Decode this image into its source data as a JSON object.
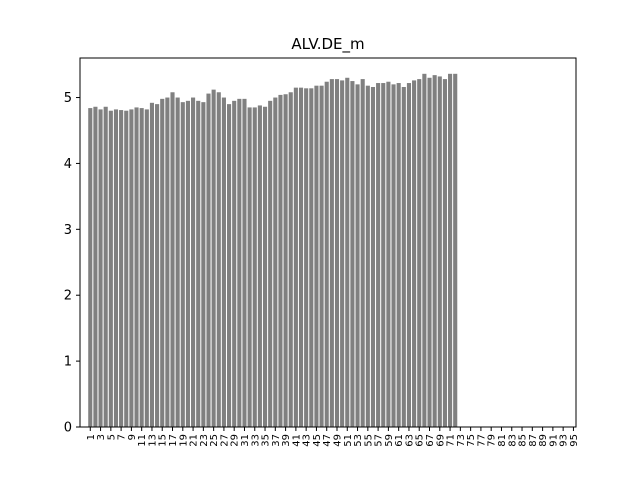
{
  "chart_data": {
    "type": "bar",
    "title": "ALV.DE_m",
    "xlabel": "",
    "ylabel": "",
    "ylim": [
      0,
      5.6
    ],
    "xlim": [
      -1,
      95.5
    ],
    "yticks": [
      0,
      1,
      2,
      3,
      4,
      5
    ],
    "xticks": [
      1,
      3,
      5,
      7,
      9,
      11,
      13,
      15,
      17,
      19,
      21,
      23,
      25,
      27,
      29,
      31,
      33,
      35,
      37,
      39,
      41,
      43,
      45,
      47,
      49,
      51,
      53,
      55,
      57,
      59,
      61,
      63,
      65,
      67,
      69,
      71,
      73,
      75,
      77,
      79,
      81,
      83,
      85,
      87,
      89,
      91,
      93,
      95
    ],
    "bar_color": "#808080",
    "grid": false,
    "x": [
      1,
      2,
      3,
      4,
      5,
      6,
      7,
      8,
      9,
      10,
      11,
      12,
      13,
      14,
      15,
      16,
      17,
      18,
      19,
      20,
      21,
      22,
      23,
      24,
      25,
      26,
      27,
      28,
      29,
      30,
      31,
      32,
      33,
      34,
      35,
      36,
      37,
      38,
      39,
      40,
      41,
      42,
      43,
      44,
      45,
      46,
      47,
      48,
      49,
      50,
      51,
      52,
      53,
      54,
      55,
      56,
      57,
      58,
      59,
      60,
      61,
      62,
      63,
      64,
      65,
      66,
      67,
      68,
      69,
      70,
      71,
      72
    ],
    "values": [
      4.84,
      4.86,
      4.82,
      4.86,
      4.8,
      4.82,
      4.81,
      4.8,
      4.82,
      4.85,
      4.84,
      4.82,
      4.92,
      4.9,
      4.98,
      5.0,
      5.08,
      5.0,
      4.93,
      4.95,
      5.0,
      4.95,
      4.93,
      5.06,
      5.12,
      5.08,
      5.0,
      4.9,
      4.95,
      4.98,
      4.98,
      4.85,
      4.85,
      4.88,
      4.86,
      4.95,
      5.0,
      5.04,
      5.05,
      5.08,
      5.15,
      5.15,
      5.14,
      5.14,
      5.18,
      5.18,
      5.24,
      5.28,
      5.28,
      5.26,
      5.3,
      5.25,
      5.2,
      5.28,
      5.18,
      5.16,
      5.22,
      5.22,
      5.24,
      5.2,
      5.22,
      5.16,
      5.22,
      5.26,
      5.28,
      5.36,
      5.3,
      5.34,
      5.32,
      5.28,
      5.36,
      5.36
    ]
  }
}
